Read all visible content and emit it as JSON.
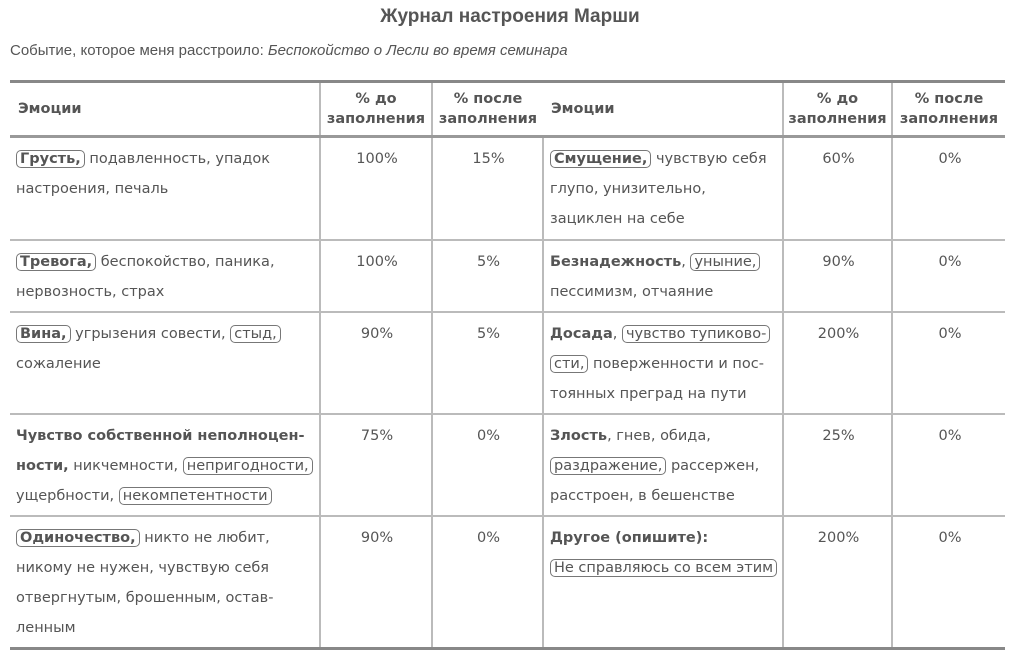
{
  "title": "Журнал настроения Марши",
  "event": {
    "label": "Событие, которое меня расстроило:",
    "value": "Беспокойство о Лесли во время семинара"
  },
  "headers": {
    "emotions": "Эмоции",
    "before": "% до заполнения",
    "after": "% после заполнения"
  },
  "rows": [
    {
      "left": {
        "lines": [
          [
            {
              "t": "Грусть,",
              "b": true,
              "box": true
            },
            {
              "t": " подавленность, упадок"
            }
          ],
          [
            {
              "t": "настроения, печаль"
            }
          ]
        ],
        "before": "100%",
        "after": "15%"
      },
      "right": {
        "lines": [
          [
            {
              "t": "Смущение,",
              "b": true,
              "box": true
            },
            {
              "t": " чувствую себя"
            }
          ],
          [
            {
              "t": "глупо, унизительно,"
            }
          ],
          [
            {
              "t": "зациклен на себе"
            }
          ]
        ],
        "before": "60%",
        "after": "0%"
      }
    },
    {
      "left": {
        "lines": [
          [
            {
              "t": "Тревога,",
              "b": true,
              "box": true
            },
            {
              "t": " беспокойство, паника,"
            }
          ],
          [
            {
              "t": "нервозность, страх"
            }
          ]
        ],
        "before": "100%",
        "after": "5%"
      },
      "right": {
        "lines": [
          [
            {
              "t": "Безнадежность",
              "b": true
            },
            {
              "t": ", "
            },
            {
              "t": "уныние,",
              "box": true
            }
          ],
          [
            {
              "t": "пессимизм, отчаяние"
            }
          ]
        ],
        "before": "90%",
        "after": "0%"
      }
    },
    {
      "left": {
        "lines": [
          [
            {
              "t": "Вина,",
              "b": true,
              "box": true
            },
            {
              "t": " угрызения совести, "
            },
            {
              "t": "стыд,",
              "box": true
            }
          ],
          [
            {
              "t": "сожаление"
            }
          ]
        ],
        "before": "90%",
        "after": "5%"
      },
      "right": {
        "lines": [
          [
            {
              "t": "Досада",
              "b": true
            },
            {
              "t": ", "
            },
            {
              "t": "чувство тупиково-",
              "box": true
            }
          ],
          [
            {
              "t": "сти,",
              "box": true
            },
            {
              "t": " поверженности и пос-"
            }
          ],
          [
            {
              "t": "тоянных преград на пути"
            }
          ]
        ],
        "before": "200%",
        "after": "0%"
      }
    },
    {
      "left": {
        "lines": [
          [
            {
              "t": "Чувство собственной неполноцен-",
              "b": true
            }
          ],
          [
            {
              "t": "ности,",
              "b": true
            },
            {
              "t": " никчемности, "
            },
            {
              "t": "непригодности,",
              "box": true
            }
          ],
          [
            {
              "t": "ущербности, "
            },
            {
              "t": "некомпетентности",
              "box": true
            }
          ]
        ],
        "before": "75%",
        "after": "0%"
      },
      "right": {
        "lines": [
          [
            {
              "t": "Злость",
              "b": true
            },
            {
              "t": ", гнев, обида,"
            }
          ],
          [
            {
              "t": "раздражение,",
              "box": true
            },
            {
              "t": " рассержен,"
            }
          ],
          [
            {
              "t": "расстроен, в бешенстве"
            }
          ]
        ],
        "before": "25%",
        "after": "0%"
      }
    },
    {
      "left": {
        "lines": [
          [
            {
              "t": "Одиночество,",
              "b": true,
              "box": true
            },
            {
              "t": " никто не любит,"
            }
          ],
          [
            {
              "t": "никому не нужен, чувствую себя"
            }
          ],
          [
            {
              "t": "отвергнутым, брошенным, остав-"
            }
          ],
          [
            {
              "t": "ленным"
            }
          ]
        ],
        "before": "90%",
        "after": "0%"
      },
      "right": {
        "lines": [
          [
            {
              "t": "Другое (опишите):",
              "b": true
            }
          ],
          [
            {
              "t": "Не справляюсь со всем этим",
              "box": true
            }
          ]
        ],
        "before": "200%",
        "after": "0%"
      }
    }
  ]
}
